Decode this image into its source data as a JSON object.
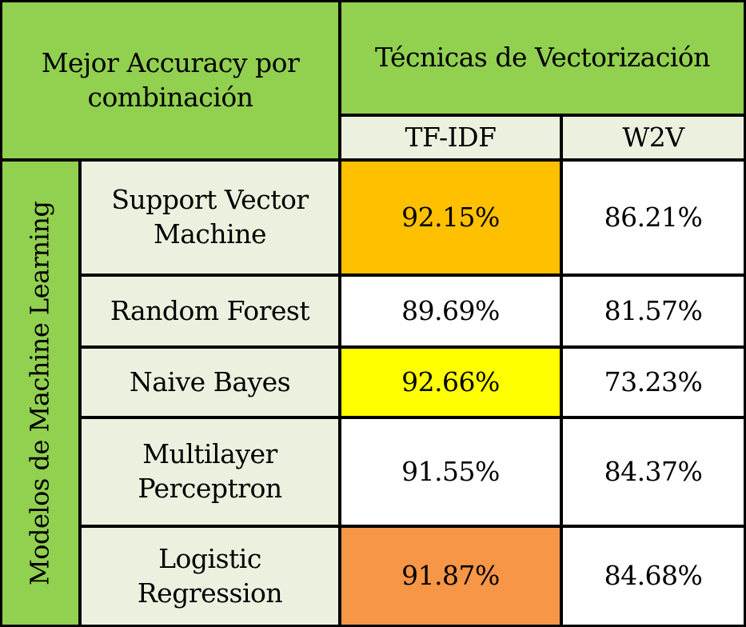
{
  "title": "Mejor Accuracy por combinación",
  "group_header": "Técnicas de Vectorización",
  "side_label": "Modelos de Machine Learning",
  "columns": [
    "TF-IDF",
    "W2V"
  ],
  "colors": {
    "header_green": "#92d050",
    "light_green": "#ebf1de",
    "highlight_orange_dark": "#ffc000",
    "highlight_yellow": "#ffff00",
    "highlight_orange": "#f79646"
  },
  "chart_data": {
    "type": "table",
    "title": "Mejor Accuracy por combinación",
    "columns": [
      "TF-IDF",
      "W2V"
    ],
    "rows": [
      {
        "model": "Support Vector Machine",
        "tfidf": "92.15%",
        "w2v": "86.21%",
        "highlight": "#ffc000"
      },
      {
        "model": "Random Forest",
        "tfidf": "89.69%",
        "w2v": "81.57%",
        "highlight": null
      },
      {
        "model": "Naive Bayes",
        "tfidf": "92.66%",
        "w2v": "73.23%",
        "highlight": "#ffff00"
      },
      {
        "model": "Multilayer Perceptron",
        "tfidf": "91.55%",
        "w2v": "84.37%",
        "highlight": null
      },
      {
        "model": "Logistic Regression",
        "tfidf": "91.87%",
        "w2v": "84.68%",
        "highlight": "#f79646"
      }
    ]
  }
}
